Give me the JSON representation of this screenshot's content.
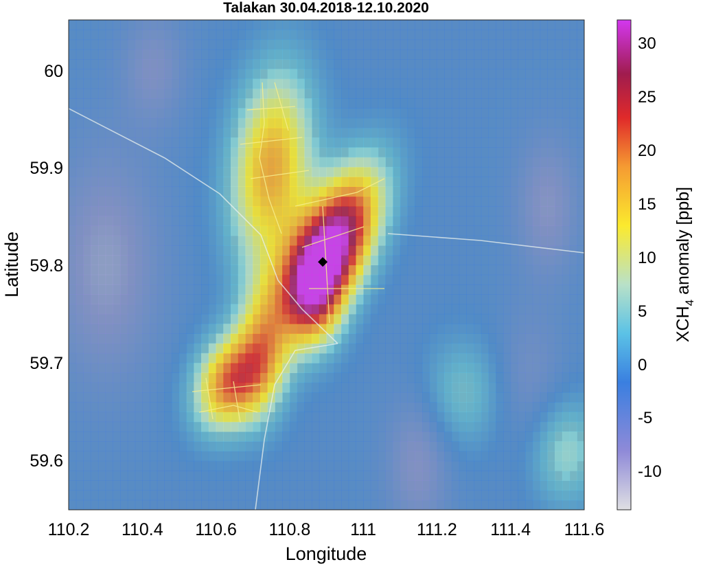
{
  "chart_data": {
    "type": "heatmap",
    "title": "Talakan 30.04.2018-12.10.2020",
    "xlabel": "Longitude",
    "ylabel": "Latitude",
    "xlim": [
      110.2,
      111.6
    ],
    "ylim": [
      59.55,
      60.05
    ],
    "xticks": [
      "110.2",
      "110.4",
      "110.6",
      "110.8",
      "111",
      "111.2",
      "111.4",
      "111.6"
    ],
    "yticks": [
      "59.6",
      "59.7",
      "59.8",
      "59.9",
      "60"
    ],
    "colorbar": {
      "label_parts": [
        "XCH",
        "4",
        " anomaly [ppb]"
      ],
      "ticks": [
        "-10",
        "-5",
        "0",
        "5",
        "10",
        "15",
        "20",
        "25",
        "30"
      ],
      "range": [
        -14,
        31.5
      ]
    },
    "marker": {
      "type": "diamond",
      "lon": 110.89,
      "lat": 59.803
    },
    "hotspots": [
      {
        "lon": 110.92,
        "lat": 59.82,
        "peak": 31,
        "sx": 0.09,
        "sy": 0.055,
        "rho": 0.55
      },
      {
        "lon": 110.86,
        "lat": 59.77,
        "peak": 12,
        "sx": 0.06,
        "sy": 0.04,
        "rho": 0
      },
      {
        "lon": 110.75,
        "lat": 59.9,
        "peak": 17,
        "sx": 0.08,
        "sy": 0.07,
        "rho": 0.2
      },
      {
        "lon": 110.64,
        "lat": 59.68,
        "peak": 20,
        "sx": 0.07,
        "sy": 0.035,
        "rho": 0.2
      },
      {
        "lon": 110.73,
        "lat": 59.72,
        "peak": 10,
        "sx": 0.05,
        "sy": 0.05,
        "rho": 0
      },
      {
        "lon": 111.27,
        "lat": 59.67,
        "peak": 4,
        "sx": 0.08,
        "sy": 0.04,
        "rho": 0
      },
      {
        "lon": 111.55,
        "lat": 59.61,
        "peak": 6,
        "sx": 0.07,
        "sy": 0.04,
        "rho": 0
      }
    ],
    "lows": [
      {
        "lon": 110.3,
        "lat": 59.8,
        "peak": -10,
        "sx": 0.1,
        "sy": 0.08
      },
      {
        "lon": 111.5,
        "lat": 59.86,
        "peak": -9,
        "sx": 0.06,
        "sy": 0.05
      },
      {
        "lon": 110.43,
        "lat": 60.0,
        "peak": -8,
        "sx": 0.06,
        "sy": 0.04
      },
      {
        "lon": 111.15,
        "lat": 59.6,
        "peak": -9,
        "sx": 0.06,
        "sy": 0.05
      },
      {
        "lon": 111.45,
        "lat": 59.68,
        "peak": -7,
        "sx": 0.07,
        "sy": 0.05
      }
    ],
    "background_level": -3
  }
}
